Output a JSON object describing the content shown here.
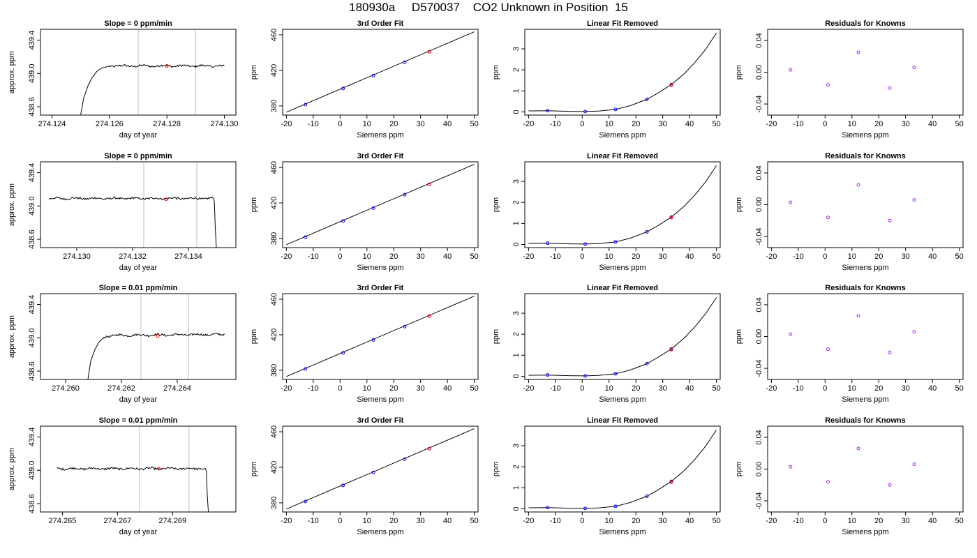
{
  "page": {
    "title": "180930a     D570037    CO2 Unknown in Position  15"
  },
  "colors": {
    "line": "#000000",
    "point_blue": "#0000ff",
    "point_red": "#ff0000",
    "residual_point": "#a020f0",
    "marker_line": "#bebebe"
  },
  "chart_data": [
    {
      "panel": "row1-timeseries",
      "type": "line",
      "title": "Slope =  0  ppm/min",
      "xlabel": "day of year",
      "ylabel": "approx. ppm",
      "xlim": [
        274.1236,
        274.1304
      ],
      "ylim": [
        438.5,
        439.53
      ],
      "xticks": [
        274.124,
        274.126,
        274.128,
        274.13
      ],
      "xtick_labels": [
        "274.124",
        "274.126",
        "274.128",
        "274.130"
      ],
      "yticks": [
        438.6,
        439.0,
        439.4
      ],
      "ytick_labels": [
        "438.6",
        "439.0",
        "439.4"
      ],
      "vlines": [
        274.127,
        274.129
      ],
      "series": [
        {
          "x": [
            274.125,
            274.1251,
            274.12525,
            274.1254,
            274.12555,
            274.1257,
            274.126,
            274.13
          ],
          "y": [
            438.5,
            438.7,
            438.85,
            438.95,
            439.02,
            439.06,
            439.09,
            439.09
          ]
        }
      ],
      "noise": 0.012,
      "highlight": {
        "x": 274.128,
        "y": 439.09
      }
    },
    {
      "panel": "row1-fit",
      "type": "scatter",
      "title": "3rd Order Fit",
      "xlabel": "Siemens ppm",
      "ylabel": "ppm",
      "xlim": [
        -21.4,
        51.4
      ],
      "ylim": [
        369.7,
        466.3
      ],
      "xticks": [
        -20,
        -10,
        0,
        10,
        20,
        30,
        40,
        50
      ],
      "xtick_labels": [
        "-20",
        "-10",
        "0",
        "10",
        "20",
        "30",
        "40",
        "50"
      ],
      "yticks": [
        380,
        420,
        460
      ],
      "ytick_labels": [
        "380",
        "420",
        "460"
      ],
      "fit_line": {
        "x": [
          -20,
          50
        ],
        "y": [
          373.0,
          463.5
        ]
      },
      "points": {
        "x": [
          -12.9,
          1.1,
          12.4,
          24.1,
          33.2
        ],
        "y": [
          381.5,
          399.6,
          414.2,
          429.2,
          441.0
        ]
      },
      "highlight": {
        "x": 33.2,
        "y": 441.0
      }
    },
    {
      "panel": "row1-linear-removed",
      "type": "scatter",
      "title": "Linear Fit Removed",
      "xlabel": "Siemens ppm",
      "ylabel": "ppm",
      "xlim": [
        -21.4,
        51.4
      ],
      "ylim": [
        -0.15,
        3.93
      ],
      "xticks": [
        -20,
        -10,
        0,
        10,
        20,
        30,
        40,
        50
      ],
      "xtick_labels": [
        "-20",
        "-10",
        "0",
        "10",
        "20",
        "30",
        "40",
        "50"
      ],
      "yticks": [
        0,
        1,
        2,
        3
      ],
      "ytick_labels": [
        "0",
        "1",
        "2",
        "3"
      ],
      "curve": {
        "x": [
          -20,
          -12.9,
          -5,
          1.1,
          6,
          12.4,
          18,
          24.1,
          28,
          33.2,
          38,
          42,
          46,
          50
        ],
        "y": [
          0.05,
          0.06,
          0.03,
          0.02,
          0.04,
          0.12,
          0.3,
          0.6,
          0.88,
          1.3,
          1.82,
          2.35,
          2.98,
          3.75
        ]
      },
      "points": {
        "x": [
          -12.9,
          1.1,
          12.4,
          24.1,
          33.2
        ],
        "y": [
          0.06,
          0.02,
          0.12,
          0.6,
          1.3
        ]
      },
      "highlight": {
        "x": 33.2,
        "y": 1.28
      }
    },
    {
      "panel": "row1-residuals",
      "type": "scatter",
      "title": "Residuals for Knowns",
      "xlabel": "Siemens ppm",
      "ylabel": "ppm",
      "xlim": [
        -21.4,
        51.4
      ],
      "ylim": [
        -0.054,
        0.054
      ],
      "xticks": [
        -20,
        -10,
        0,
        10,
        20,
        30,
        40,
        50
      ],
      "xtick_labels": [
        "-20",
        "-10",
        "0",
        "10",
        "20",
        "30",
        "40",
        "50"
      ],
      "yticks": [
        -0.04,
        0.0,
        0.04
      ],
      "ytick_labels": [
        "-0.04",
        "0.00",
        "0.04"
      ],
      "points": {
        "x": [
          -12.9,
          1.1,
          12.4,
          24.1,
          33.2
        ],
        "y": [
          0.003,
          -0.016,
          0.025,
          -0.02,
          0.006
        ]
      }
    },
    {
      "panel": "row2-timeseries",
      "type": "line",
      "title": "Slope =  0  ppm/min",
      "xlabel": "day of year",
      "ylabel": "approx. ppm",
      "xlim": [
        274.1287,
        274.1357
      ],
      "ylim": [
        438.5,
        439.53
      ],
      "xticks": [
        274.13,
        274.132,
        274.134
      ],
      "xtick_labels": [
        "274.130",
        "274.132",
        "274.134"
      ],
      "yticks": [
        438.6,
        439.0,
        439.4
      ],
      "ytick_labels": [
        "438.6",
        "439.0",
        "439.4"
      ],
      "vlines": [
        274.1324,
        274.1343
      ],
      "series": [
        {
          "x": [
            274.129,
            274.1349,
            274.13493,
            274.13496,
            274.135
          ],
          "y": [
            439.09,
            439.09,
            439.05,
            438.75,
            438.5
          ]
        }
      ],
      "noise": 0.012,
      "highlight": {
        "x": 274.1332,
        "y": 439.08
      }
    },
    {
      "panel": "row2-fit",
      "type": "scatter",
      "title": "3rd Order Fit",
      "xlabel": "Siemens ppm",
      "ylabel": "ppm",
      "xlim": [
        -21.4,
        51.4
      ],
      "ylim": [
        369.7,
        466.3
      ],
      "xticks": [
        -20,
        -10,
        0,
        10,
        20,
        30,
        40,
        50
      ],
      "xtick_labels": [
        "-20",
        "-10",
        "0",
        "10",
        "20",
        "30",
        "40",
        "50"
      ],
      "yticks": [
        380,
        420,
        460
      ],
      "ytick_labels": [
        "380",
        "420",
        "460"
      ],
      "fit_line": {
        "x": [
          -20,
          50
        ],
        "y": [
          373.0,
          463.5
        ]
      },
      "points": {
        "x": [
          -12.9,
          1.1,
          12.4,
          24.1,
          33.2
        ],
        "y": [
          381.5,
          399.6,
          414.2,
          429.2,
          441.0
        ]
      },
      "highlight": {
        "x": 33.2,
        "y": 441.0
      }
    },
    {
      "panel": "row2-linear-removed",
      "type": "scatter",
      "title": "Linear Fit Removed",
      "xlabel": "Siemens ppm",
      "ylabel": "ppm",
      "xlim": [
        -21.4,
        51.4
      ],
      "ylim": [
        -0.15,
        3.93
      ],
      "xticks": [
        -20,
        -10,
        0,
        10,
        20,
        30,
        40,
        50
      ],
      "xtick_labels": [
        "-20",
        "-10",
        "0",
        "10",
        "20",
        "30",
        "40",
        "50"
      ],
      "yticks": [
        0,
        1,
        2,
        3
      ],
      "ytick_labels": [
        "0",
        "1",
        "2",
        "3"
      ],
      "curve": {
        "x": [
          -20,
          -12.9,
          -5,
          1.1,
          6,
          12.4,
          18,
          24.1,
          28,
          33.2,
          38,
          42,
          46,
          50
        ],
        "y": [
          0.05,
          0.06,
          0.03,
          0.02,
          0.04,
          0.12,
          0.3,
          0.6,
          0.88,
          1.3,
          1.82,
          2.35,
          2.98,
          3.75
        ]
      },
      "points": {
        "x": [
          -12.9,
          1.1,
          12.4,
          24.1,
          33.2
        ],
        "y": [
          0.06,
          0.02,
          0.12,
          0.6,
          1.3
        ]
      },
      "highlight": {
        "x": 33.2,
        "y": 1.28
      }
    },
    {
      "panel": "row2-residuals",
      "type": "scatter",
      "title": "Residuals for Knowns",
      "xlabel": "Siemens ppm",
      "ylabel": "ppm",
      "xlim": [
        -21.4,
        51.4
      ],
      "ylim": [
        -0.054,
        0.054
      ],
      "xticks": [
        -20,
        -10,
        0,
        10,
        20,
        30,
        40,
        50
      ],
      "xtick_labels": [
        "-20",
        "-10",
        "0",
        "10",
        "20",
        "30",
        "40",
        "50"
      ],
      "yticks": [
        -0.04,
        0.0,
        0.04
      ],
      "ytick_labels": [
        "-0.04",
        "0.00",
        "0.04"
      ],
      "points": {
        "x": [
          -12.9,
          1.1,
          12.4,
          24.1,
          33.2
        ],
        "y": [
          0.003,
          -0.016,
          0.025,
          -0.02,
          0.006
        ]
      }
    },
    {
      "panel": "row3-timeseries",
      "type": "line",
      "title": "Slope =  0.01  ppm/min",
      "xlabel": "day of year",
      "ylabel": "approx. ppm",
      "xlim": [
        274.2591,
        274.2661
      ],
      "ylim": [
        438.5,
        439.53
      ],
      "xticks": [
        274.26,
        274.262,
        274.264
      ],
      "xtick_labels": [
        "274.260",
        "274.262",
        "274.264"
      ],
      "yticks": [
        438.6,
        439.0,
        439.4
      ],
      "ytick_labels": [
        "438.6",
        "439.0",
        "439.4"
      ],
      "vlines": [
        274.2627,
        274.2644
      ],
      "series": [
        {
          "x": [
            274.2608,
            274.2609,
            274.26105,
            274.2612,
            274.26135,
            274.2615,
            274.2618,
            274.2657
          ],
          "y": [
            438.5,
            438.72,
            438.86,
            438.95,
            439.0,
            439.02,
            439.03,
            439.04
          ]
        }
      ],
      "noise": 0.012,
      "highlight": {
        "x": 274.2633,
        "y": 439.02
      }
    },
    {
      "panel": "row3-fit",
      "type": "scatter",
      "title": "3rd Order Fit",
      "xlabel": "Siemens ppm",
      "ylabel": "ppm",
      "xlim": [
        -21.4,
        51.4
      ],
      "ylim": [
        369.7,
        466.3
      ],
      "xticks": [
        -20,
        -10,
        0,
        10,
        20,
        30,
        40,
        50
      ],
      "xtick_labels": [
        "-20",
        "-10",
        "0",
        "10",
        "20",
        "30",
        "40",
        "50"
      ],
      "yticks": [
        380,
        420,
        460
      ],
      "ytick_labels": [
        "380",
        "420",
        "460"
      ],
      "fit_line": {
        "x": [
          -20,
          50
        ],
        "y": [
          373.0,
          463.5
        ]
      },
      "points": {
        "x": [
          -12.9,
          1.1,
          12.4,
          24.1,
          33.2
        ],
        "y": [
          381.5,
          399.6,
          414.2,
          429.2,
          441.0
        ]
      },
      "highlight": {
        "x": 33.2,
        "y": 441.0
      }
    },
    {
      "panel": "row3-linear-removed",
      "type": "scatter",
      "title": "Linear Fit Removed",
      "xlabel": "Siemens ppm",
      "ylabel": "ppm",
      "xlim": [
        -21.4,
        51.4
      ],
      "ylim": [
        -0.15,
        3.93
      ],
      "xticks": [
        -20,
        -10,
        0,
        10,
        20,
        30,
        40,
        50
      ],
      "xtick_labels": [
        "-20",
        "-10",
        "0",
        "10",
        "20",
        "30",
        "40",
        "50"
      ],
      "yticks": [
        0,
        1,
        2,
        3
      ],
      "ytick_labels": [
        "0",
        "1",
        "2",
        "3"
      ],
      "curve": {
        "x": [
          -20,
          -12.9,
          -5,
          1.1,
          6,
          12.4,
          18,
          24.1,
          28,
          33.2,
          38,
          42,
          46,
          50
        ],
        "y": [
          0.05,
          0.06,
          0.03,
          0.02,
          0.04,
          0.12,
          0.3,
          0.6,
          0.88,
          1.3,
          1.82,
          2.35,
          2.98,
          3.75
        ]
      },
      "points": {
        "x": [
          -12.9,
          1.1,
          12.4,
          24.1,
          33.2
        ],
        "y": [
          0.06,
          0.02,
          0.12,
          0.6,
          1.3
        ]
      },
      "highlight": {
        "x": 33.2,
        "y": 1.27
      }
    },
    {
      "panel": "row3-residuals",
      "type": "scatter",
      "title": "Residuals for Knowns",
      "xlabel": "Siemens ppm",
      "ylabel": "ppm",
      "xlim": [
        -21.4,
        51.4
      ],
      "ylim": [
        -0.054,
        0.054
      ],
      "xticks": [
        -20,
        -10,
        0,
        10,
        20,
        30,
        40,
        50
      ],
      "xtick_labels": [
        "-20",
        "-10",
        "0",
        "10",
        "20",
        "30",
        "40",
        "50"
      ],
      "yticks": [
        -0.04,
        0.0,
        0.04
      ],
      "ytick_labels": [
        "-0.04",
        "0.00",
        "0.04"
      ],
      "points": {
        "x": [
          -12.9,
          1.1,
          12.4,
          24.1,
          33.2
        ],
        "y": [
          0.003,
          -0.016,
          0.026,
          -0.02,
          0.006
        ]
      }
    },
    {
      "panel": "row4-timeseries",
      "type": "line",
      "title": "Slope =  0.01  ppm/min",
      "xlabel": "day of year",
      "ylabel": "approx. ppm",
      "xlim": [
        274.2642,
        274.2713
      ],
      "ylim": [
        438.5,
        439.53
      ],
      "xticks": [
        274.265,
        274.267,
        274.269
      ],
      "xtick_labels": [
        "274.265",
        "274.267",
        "274.269"
      ],
      "yticks": [
        438.6,
        439.0,
        439.4
      ],
      "ytick_labels": [
        "438.6",
        "439.0",
        "439.4"
      ],
      "vlines": [
        274.2678,
        274.2696
      ],
      "series": [
        {
          "x": [
            274.2648,
            274.2702,
            274.27023,
            274.27026,
            274.2703
          ],
          "y": [
            439.02,
            439.02,
            438.98,
            438.7,
            438.5
          ]
        }
      ],
      "noise": 0.012,
      "highlight": {
        "x": 274.2685,
        "y": 439.02
      }
    },
    {
      "panel": "row4-fit",
      "type": "scatter",
      "title": "3rd Order Fit",
      "xlabel": "Siemens ppm",
      "ylabel": "ppm",
      "xlim": [
        -21.4,
        51.4
      ],
      "ylim": [
        369.7,
        466.3
      ],
      "xticks": [
        -20,
        -10,
        0,
        10,
        20,
        30,
        40,
        50
      ],
      "xtick_labels": [
        "-20",
        "-10",
        "0",
        "10",
        "20",
        "30",
        "40",
        "50"
      ],
      "yticks": [
        380,
        420,
        460
      ],
      "ytick_labels": [
        "380",
        "420",
        "460"
      ],
      "fit_line": {
        "x": [
          -20,
          50
        ],
        "y": [
          373.0,
          463.5
        ]
      },
      "points": {
        "x": [
          -12.9,
          1.1,
          12.4,
          24.1,
          33.2
        ],
        "y": [
          381.5,
          399.6,
          414.2,
          429.2,
          441.0
        ]
      },
      "highlight": {
        "x": 33.2,
        "y": 441.0
      }
    },
    {
      "panel": "row4-linear-removed",
      "type": "scatter",
      "title": "Linear Fit Removed",
      "xlabel": "Siemens ppm",
      "ylabel": "ppm",
      "xlim": [
        -21.4,
        51.4
      ],
      "ylim": [
        -0.15,
        3.93
      ],
      "xticks": [
        -20,
        -10,
        0,
        10,
        20,
        30,
        40,
        50
      ],
      "xtick_labels": [
        "-20",
        "-10",
        "0",
        "10",
        "20",
        "30",
        "40",
        "50"
      ],
      "yticks": [
        0,
        1,
        2,
        3
      ],
      "ytick_labels": [
        "0",
        "1",
        "2",
        "3"
      ],
      "curve": {
        "x": [
          -20,
          -12.9,
          -5,
          1.1,
          6,
          12.4,
          18,
          24.1,
          28,
          33.2,
          38,
          42,
          46,
          50
        ],
        "y": [
          0.05,
          0.06,
          0.03,
          0.02,
          0.04,
          0.12,
          0.3,
          0.6,
          0.88,
          1.3,
          1.82,
          2.35,
          2.98,
          3.75
        ]
      },
      "points": {
        "x": [
          -12.9,
          1.1,
          12.4,
          24.1,
          33.2
        ],
        "y": [
          0.06,
          0.02,
          0.12,
          0.6,
          1.3
        ]
      },
      "highlight": {
        "x": 33.2,
        "y": 1.27
      }
    },
    {
      "panel": "row4-residuals",
      "type": "scatter",
      "title": "Residuals for Knowns",
      "xlabel": "Siemens ppm",
      "ylabel": "ppm",
      "xlim": [
        -21.4,
        51.4
      ],
      "ylim": [
        -0.054,
        0.054
      ],
      "xticks": [
        -20,
        -10,
        0,
        10,
        20,
        30,
        40,
        50
      ],
      "xtick_labels": [
        "-20",
        "-10",
        "0",
        "10",
        "20",
        "30",
        "40",
        "50"
      ],
      "yticks": [
        -0.04,
        0.0,
        0.04
      ],
      "ytick_labels": [
        "-0.04",
        "0.00",
        "0.04"
      ],
      "points": {
        "x": [
          -12.9,
          1.1,
          12.4,
          24.1,
          33.2
        ],
        "y": [
          0.003,
          -0.016,
          0.026,
          -0.02,
          0.006
        ]
      }
    }
  ]
}
